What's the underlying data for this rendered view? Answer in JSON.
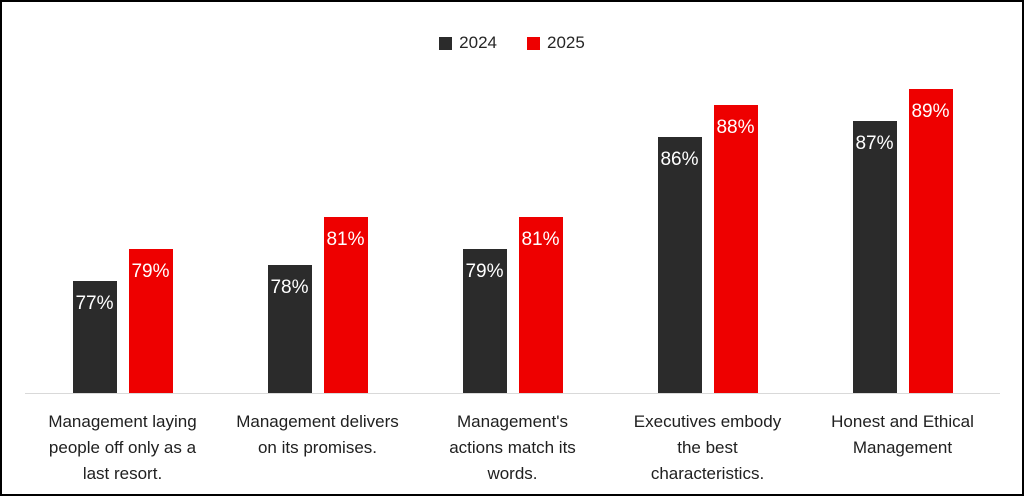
{
  "chart_data": {
    "type": "bar",
    "title": "",
    "unit": "%",
    "legend_position": "top",
    "grid": false,
    "ylim": [
      70,
      95
    ],
    "axis_line_color": "#d9d9d9",
    "background_color": "#ffffff",
    "border_color": "#000000",
    "value_label_color": "#ffffff",
    "category_label_color": "#202020",
    "categories": [
      "Management laying people off only as a last resort.",
      "Management delivers on its promises.",
      "Management's actions match its words.",
      "Executives embody the best characteristics.",
      "Honest and Ethical Management"
    ],
    "category_lines": [
      [
        "Management laying",
        "people off only as a",
        "last resort."
      ],
      [
        "Management delivers",
        "on its promises."
      ],
      [
        "Management's",
        "actions match its",
        "words."
      ],
      [
        "Executives embody",
        "the best",
        "characteristics."
      ],
      [
        "Honest and Ethical",
        "Management"
      ]
    ],
    "series": [
      {
        "name": "2024",
        "color": "#2b2b2b",
        "values": [
          77,
          78,
          79,
          86,
          87
        ]
      },
      {
        "name": "2025",
        "color": "#ee0000",
        "values": [
          79,
          81,
          81,
          88,
          89
        ]
      }
    ]
  }
}
